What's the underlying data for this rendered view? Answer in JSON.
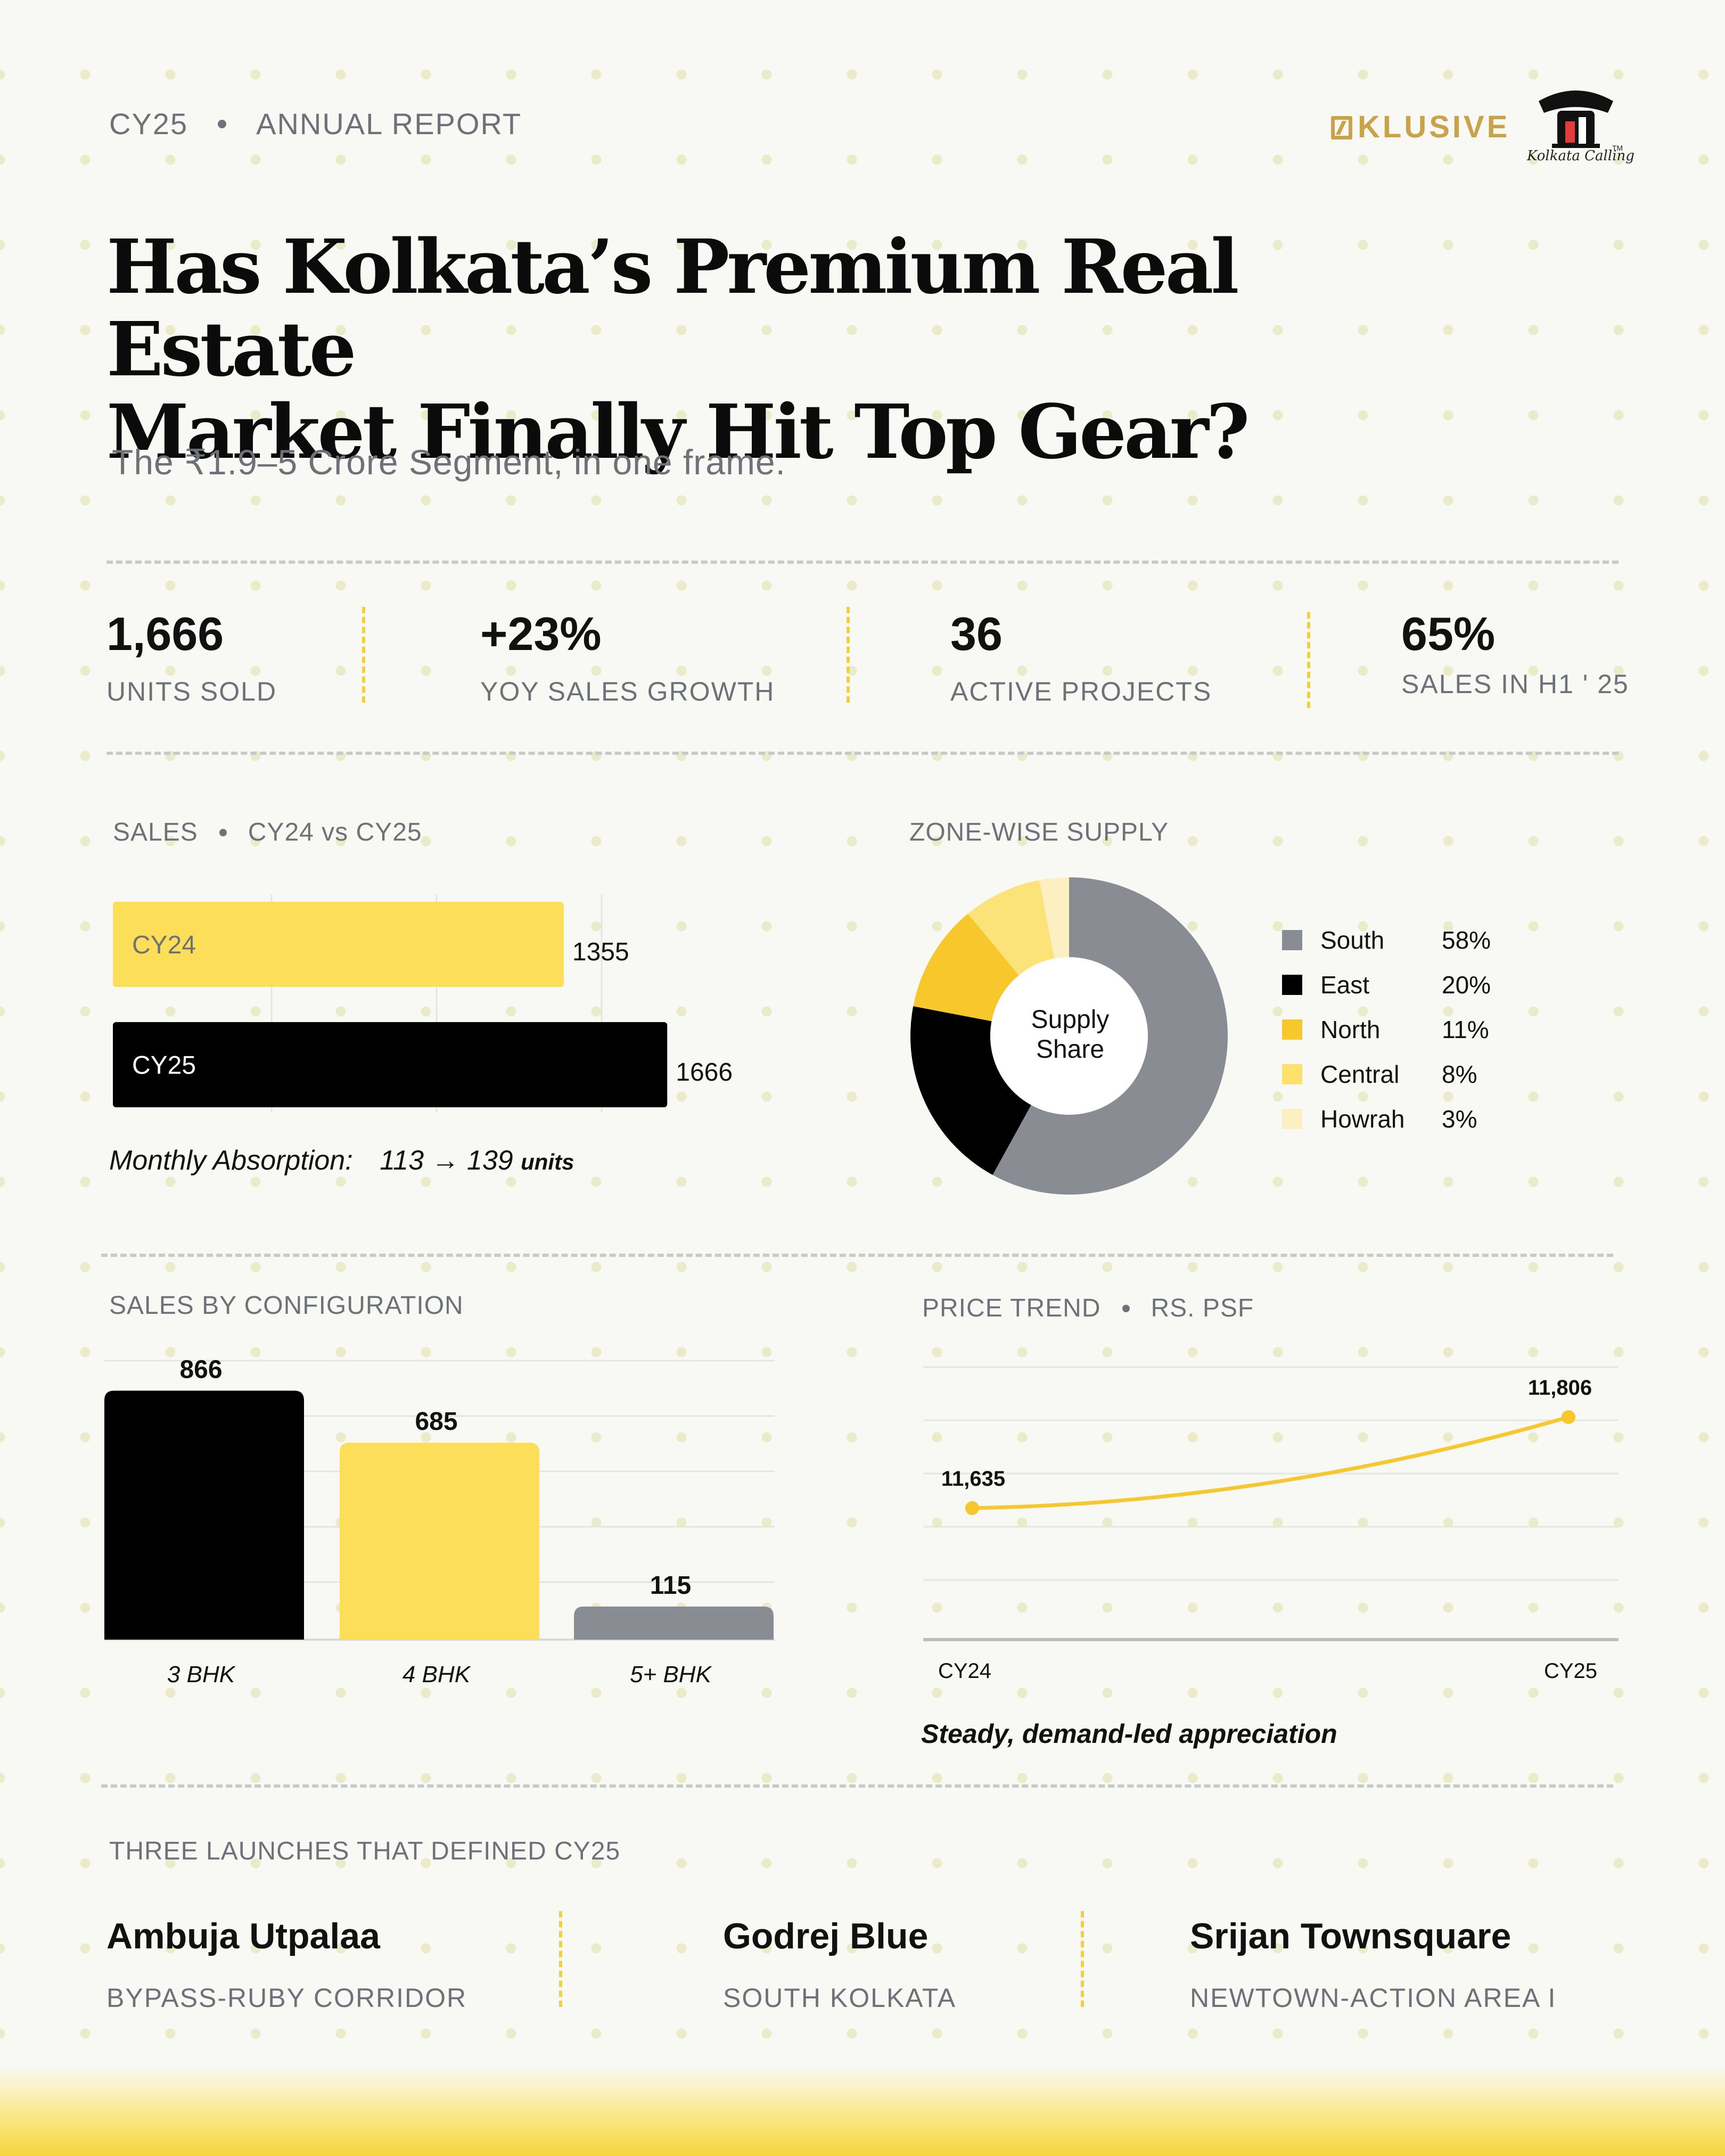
{
  "header": {
    "year_tag": "CY25",
    "report_type": "ANNUAL REPORT",
    "brand_letter": "N",
    "brand_name": "KLUSIVE",
    "logo_caption": "Kolkata Calling",
    "logo_tm": "TM"
  },
  "title_line1": "Has Kolkata’s Premium Real Estate",
  "title_line2": "Market Finally Hit Top Gear?",
  "subtitle": "The ₹1.9–5 Crore Segment, in one frame.",
  "kpis": [
    {
      "value": "1,666",
      "label": "UNITS SOLD"
    },
    {
      "value": "+23%",
      "label": "YOY SALES GROWTH"
    },
    {
      "value": "36",
      "label": "ACTIVE PROJECTS"
    },
    {
      "value": "65%",
      "label": "SALES IN H1 ' 25"
    }
  ],
  "sales_section": {
    "label_a": "SALES",
    "label_b": "CY24  vs  CY25",
    "absorption_label": "Monthly Absorption:",
    "absorption_from": "113",
    "absorption_arrow": "→",
    "absorption_to": "139",
    "absorption_unit": "units"
  },
  "zone_section": {
    "label": "ZONE-WISE SUPPLY",
    "center_line1": "Supply",
    "center_line2": "Share"
  },
  "config_section": {
    "label": "SALES BY CONFIGURATION"
  },
  "price_section": {
    "label_a": "PRICE TREND",
    "label_b": "RS. PSF",
    "caption": "Steady, demand-led appreciation"
  },
  "launches": {
    "label": "THREE LAUNCHES THAT DEFINED CY25",
    "items": [
      {
        "name": "Ambuja Utpalaa",
        "location": "BYPASS-RUBY CORRIDOR"
      },
      {
        "name": "Godrej Blue",
        "location": "SOUTH KOLKATA"
      },
      {
        "name": "Srijan Townsquare",
        "location": "NEWTOWN-ACTION AREA I"
      }
    ]
  },
  "colors": {
    "yellow": "#fdde58",
    "yellow_dark": "#f8c72c",
    "black": "#000000",
    "grey": "#8a8c93",
    "light_yellow": "#fbe68a",
    "pale_yellow": "#fcf0c2",
    "gold": "#c9a34a"
  },
  "chart_data": [
    {
      "id": "sales",
      "type": "bar",
      "orientation": "horizontal",
      "categories": [
        "CY24",
        "CY25"
      ],
      "values": [
        1355,
        1666
      ],
      "colors": [
        "#fdde58",
        "#000000"
      ],
      "label_colors": [
        "#6f7178",
        "#ffffff"
      ],
      "xlim": [
        0,
        2000
      ]
    },
    {
      "id": "zone",
      "type": "pie",
      "donut": true,
      "labels": [
        "South",
        "East",
        "North",
        "Central",
        "Howrah"
      ],
      "values": [
        58,
        20,
        11,
        8,
        3
      ],
      "display": [
        "58%",
        "20%",
        "11%",
        "8%",
        "3%"
      ],
      "colors": [
        "#8a8c93",
        "#000000",
        "#f8c72c",
        "#fbe37a",
        "#fcf0c2"
      ],
      "legend_colors": [
        "#8a8c93",
        "#000000",
        "#f8c72c",
        "#fde16a",
        "#fcf0c2"
      ],
      "legend": "right"
    },
    {
      "id": "config",
      "type": "bar",
      "categories": [
        "3 BHK",
        "4 BHK",
        "5+ BHK"
      ],
      "values": [
        866,
        685,
        115
      ],
      "colors": [
        "#000000",
        "#fdde58",
        "#8a8c93"
      ],
      "ylim": [
        0,
        1000
      ],
      "grid": true
    },
    {
      "id": "price",
      "type": "line",
      "x": [
        "CY24",
        "CY25"
      ],
      "values": [
        11635,
        11806
      ],
      "value_labels": [
        "11,635",
        "11,806"
      ],
      "color": "#f8c72c",
      "grid": true
    }
  ]
}
